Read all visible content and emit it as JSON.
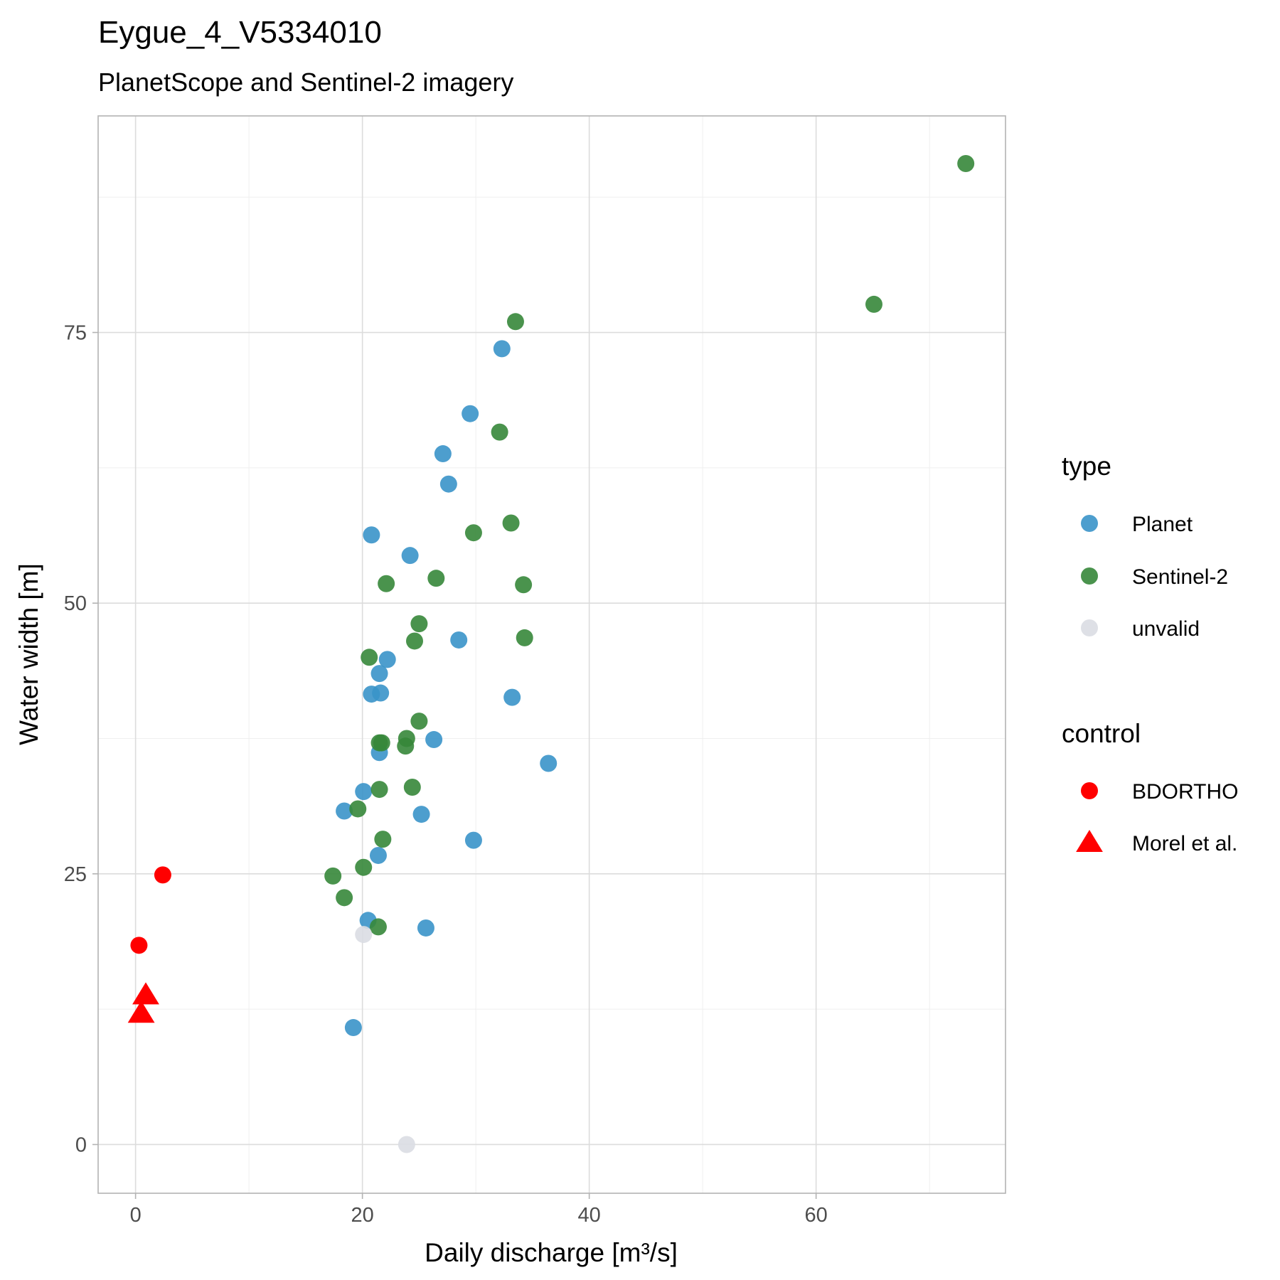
{
  "chart_data": {
    "type": "scatter",
    "title": "Eygue_4_V5334010",
    "subtitle": "PlanetScope and Sentinel-2 imagery",
    "xlabel": "Daily discharge [m³/s]",
    "ylabel": "Water width [m]",
    "xlim": [
      -3.3,
      76.7
    ],
    "ylim": [
      -4.5,
      95.0
    ],
    "x_ticks": [
      0,
      20,
      40,
      60
    ],
    "y_ticks": [
      0,
      25,
      50,
      75
    ],
    "grid": true,
    "legend_position": "right",
    "colors": {
      "Planet": "#3a94c9",
      "Sentinel-2": "#36873a",
      "unvalid": "#dadde3",
      "control": "#ff0000"
    },
    "legends": [
      {
        "title": "type",
        "entries": [
          {
            "label": "Planet",
            "shape": "circle",
            "color": "#3a94c9"
          },
          {
            "label": "Sentinel-2",
            "shape": "circle",
            "color": "#36873a"
          },
          {
            "label": "unvalid",
            "shape": "circle",
            "color": "#dadde3"
          }
        ]
      },
      {
        "title": "control",
        "entries": [
          {
            "label": "BDORTHO",
            "shape": "circle",
            "color": "#ff0000"
          },
          {
            "label": "Morel et al.",
            "shape": "triangle",
            "color": "#ff0000"
          }
        ]
      }
    ],
    "series": [
      {
        "key": "Planet",
        "shape": "circle",
        "color": "#3a94c9",
        "x": [
          32.3,
          29.5,
          27.1,
          27.6,
          20.8,
          24.2,
          28.5,
          22.2,
          21.5,
          20.8,
          21.6,
          21.5,
          26.3,
          33.2,
          36.4,
          20.1,
          18.4,
          25.2,
          29.8,
          21.4,
          20.5,
          25.6,
          19.2
        ],
        "y": [
          73.5,
          67.5,
          63.8,
          61.0,
          56.3,
          54.4,
          46.6,
          44.8,
          43.5,
          41.6,
          41.7,
          36.2,
          37.4,
          41.3,
          35.2,
          32.6,
          30.8,
          30.5,
          28.1,
          26.7,
          20.7,
          20.0,
          10.8
        ]
      },
      {
        "key": "Sentinel-2",
        "shape": "circle",
        "color": "#36873a",
        "x": [
          73.2,
          65.1,
          33.5,
          32.1,
          33.1,
          29.8,
          26.5,
          22.1,
          34.2,
          25.0,
          24.6,
          34.3,
          20.6,
          25.0,
          21.5,
          21.7,
          23.9,
          23.8,
          24.4,
          21.5,
          21.8,
          19.6,
          20.1,
          17.4,
          18.4,
          21.4
        ],
        "y": [
          90.6,
          77.6,
          76.0,
          65.8,
          57.4,
          56.5,
          52.3,
          51.8,
          51.7,
          48.1,
          46.5,
          46.8,
          45.0,
          39.1,
          37.1,
          37.1,
          37.5,
          36.8,
          33.0,
          32.8,
          28.2,
          31.0,
          25.6,
          24.8,
          22.8,
          20.1
        ]
      },
      {
        "key": "unvalid",
        "shape": "circle",
        "color": "#dadde3",
        "x": [
          20.1,
          23.9
        ],
        "y": [
          19.4,
          0.0
        ]
      },
      {
        "key": "BDORTHO",
        "shape": "circle",
        "color": "#ff0000",
        "x": [
          2.4,
          0.3
        ],
        "y": [
          24.9,
          18.4
        ]
      },
      {
        "key": "Morel et al.",
        "shape": "triangle",
        "color": "#ff0000",
        "x": [
          0.9,
          0.5
        ],
        "y": [
          13.8,
          12.1
        ]
      }
    ]
  }
}
